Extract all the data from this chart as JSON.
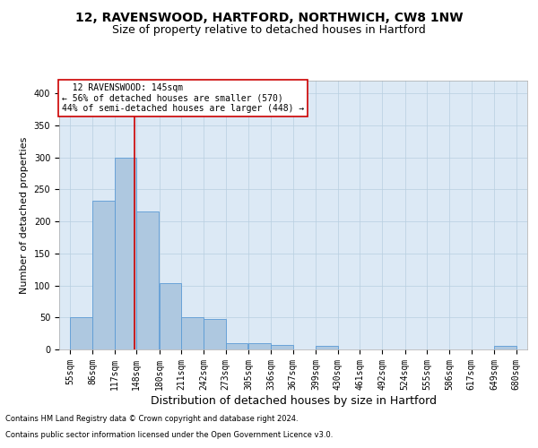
{
  "title1": "12, RAVENSWOOD, HARTFORD, NORTHWICH, CW8 1NW",
  "title2": "Size of property relative to detached houses in Hartford",
  "xlabel": "Distribution of detached houses by size in Hartford",
  "ylabel": "Number of detached properties",
  "footnote1": "Contains HM Land Registry data © Crown copyright and database right 2024.",
  "footnote2": "Contains public sector information licensed under the Open Government Licence v3.0.",
  "annotation_title": "12 RAVENSWOOD: 145sqm",
  "annotation_line1": "← 56% of detached houses are smaller (570)",
  "annotation_line2": "44% of semi-detached houses are larger (448) →",
  "property_size": 145,
  "bar_edges": [
    55,
    86,
    117,
    148,
    180,
    211,
    242,
    273,
    305,
    336,
    367,
    399,
    430,
    461,
    492,
    524,
    555,
    586,
    617,
    649,
    680
  ],
  "bar_values": [
    50,
    232,
    300,
    215,
    103,
    50,
    47,
    10,
    10,
    7,
    0,
    5,
    0,
    0,
    0,
    0,
    0,
    0,
    0,
    5
  ],
  "bar_color": "#aec8e0",
  "bar_edge_color": "#5b9bd5",
  "vline_color": "#cc0000",
  "plot_bg_color": "#dce9f5",
  "ylim": [
    0,
    420
  ],
  "yticks": [
    0,
    50,
    100,
    150,
    200,
    250,
    300,
    350,
    400
  ],
  "annotation_box_color": "#ffffff",
  "annotation_box_edge": "#cc0000",
  "title1_fontsize": 10,
  "title2_fontsize": 9,
  "xlabel_fontsize": 9,
  "ylabel_fontsize": 8,
  "annot_fontsize": 7,
  "tick_fontsize": 7,
  "footnote_fontsize": 6
}
